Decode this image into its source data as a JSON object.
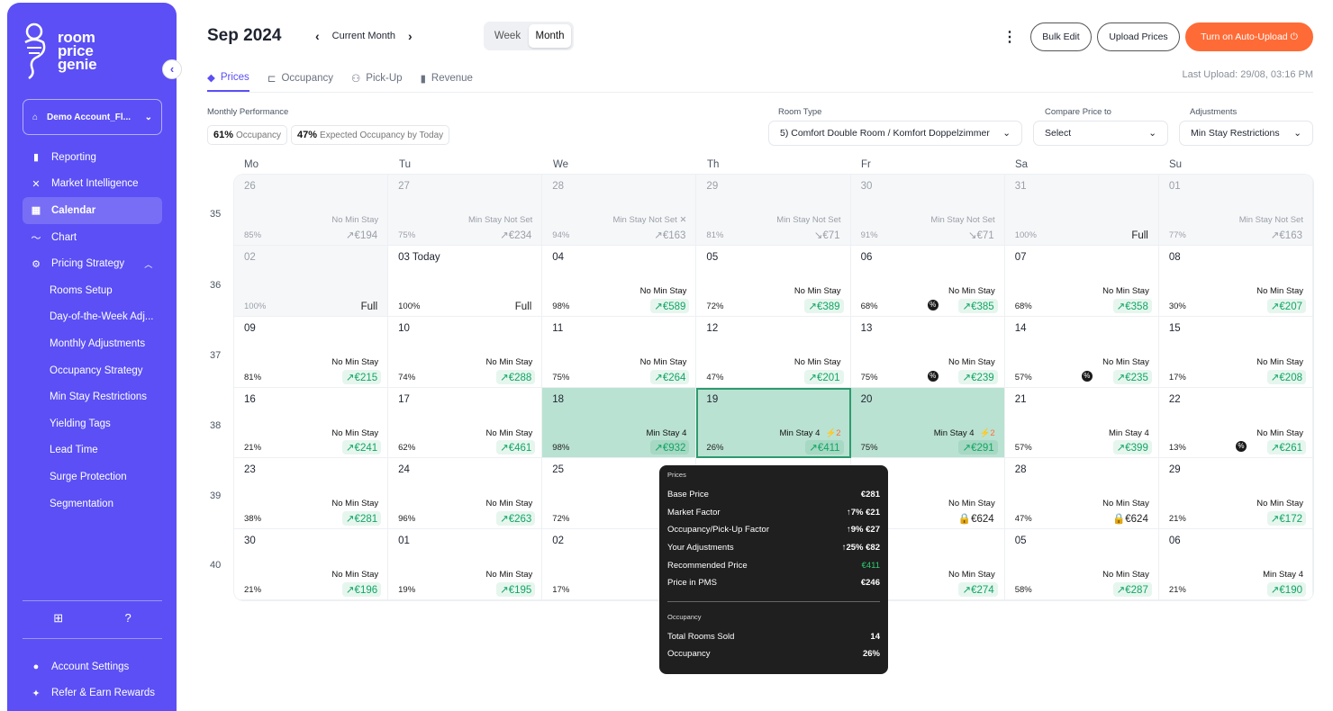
{
  "brand": {
    "line1": "room",
    "line2": "price",
    "line3": "genie"
  },
  "sidebar": {
    "account": "Demo Account_Fl...",
    "items": [
      {
        "label": "Reporting",
        "icon": "bar-chart-icon"
      },
      {
        "label": "Market Intelligence",
        "icon": "network-icon"
      },
      {
        "label": "Calendar",
        "icon": "calendar-icon"
      },
      {
        "label": "Chart",
        "icon": "line-chart-icon"
      },
      {
        "label": "Pricing Strategy",
        "icon": "gear-icon"
      }
    ],
    "sub_items": [
      "Rooms Setup",
      "Day-of-the-Week Adj...",
      "Monthly Adjustments",
      "Occupancy Strategy",
      "Min Stay Restrictions",
      "Yielding Tags",
      "Lead Time",
      "Surge Protection",
      "Segmentation"
    ],
    "bottom": [
      "Account Settings",
      "Refer & Earn Rewards"
    ]
  },
  "header": {
    "title": "Sep 2024",
    "current_month": "Current Month",
    "view_week": "Week",
    "view_month": "Month",
    "bulk_edit": "Bulk Edit",
    "upload_prices": "Upload Prices",
    "auto_upload": "Turn on Auto-Upload",
    "last_upload": "Last Upload: 29/08, 03:16 PM"
  },
  "tabs": [
    "Prices",
    "Occupancy",
    "Pick-Up",
    "Revenue"
  ],
  "filters": {
    "monthly_performance": "Monthly Performance",
    "occ_value": "61%",
    "occ_label": "Occupancy",
    "exp_value": "47%",
    "exp_label": "Expected Occupancy by Today",
    "room_type_label": "Room Type",
    "room_type": "5) Comfort Double Room / Komfort Doppelzimmer",
    "compare_label": "Compare Price to",
    "compare": "Select",
    "adjust_label": "Adjustments",
    "adjust": "Min Stay Restrictions"
  },
  "weekdays": [
    "Mo",
    "Tu",
    "We",
    "Th",
    "Fr",
    "Sa",
    "Su"
  ],
  "weeks": [
    "35",
    "36",
    "37",
    "38",
    "39",
    "40"
  ],
  "calendar": [
    [
      {
        "d": "26",
        "ms": "No Min Stay",
        "occ": "85%",
        "p": "↗€194",
        "st": "past"
      },
      {
        "d": "27",
        "ms": "Min Stay Not Set",
        "occ": "75%",
        "p": "↗€234",
        "st": "past"
      },
      {
        "d": "28",
        "ms": "Min Stay Not Set ✕",
        "occ": "94%",
        "p": "↗€163",
        "st": "past"
      },
      {
        "d": "29",
        "ms": "Min Stay Not Set",
        "occ": "81%",
        "p": "↘€71",
        "st": "past"
      },
      {
        "d": "30",
        "ms": "Min Stay Not Set",
        "occ": "91%",
        "p": "↘€71",
        "st": "past"
      },
      {
        "d": "31",
        "ms": "",
        "occ": "100%",
        "p": "Full",
        "st": "past"
      },
      {
        "d": "01",
        "ms": "Min Stay Not Set",
        "occ": "77%",
        "p": "↗€163",
        "st": "past"
      }
    ],
    [
      {
        "d": "02",
        "ms": "",
        "occ": "100%",
        "p": "Full",
        "st": "past"
      },
      {
        "d": "03 Today",
        "ms": "",
        "occ": "100%",
        "p": "Full",
        "st": "plain"
      },
      {
        "d": "04",
        "ms": "No Min Stay",
        "occ": "98%",
        "p": "↗€589",
        "st": ""
      },
      {
        "d": "05",
        "ms": "No Min Stay",
        "occ": "72%",
        "p": "↗€389",
        "st": ""
      },
      {
        "d": "06",
        "ms": "No Min Stay",
        "occ": "68%",
        "p": "↗€385",
        "st": "badge"
      },
      {
        "d": "07",
        "ms": "No Min Stay",
        "occ": "68%",
        "p": "↗€358",
        "st": ""
      },
      {
        "d": "08",
        "ms": "No Min Stay",
        "occ": "30%",
        "p": "↗€207",
        "st": ""
      }
    ],
    [
      {
        "d": "09",
        "ms": "No Min Stay",
        "occ": "81%",
        "p": "↗€215",
        "st": ""
      },
      {
        "d": "10",
        "ms": "No Min Stay",
        "occ": "74%",
        "p": "↗€288",
        "st": ""
      },
      {
        "d": "11",
        "ms": "No Min Stay",
        "occ": "75%",
        "p": "↗€264",
        "st": ""
      },
      {
        "d": "12",
        "ms": "No Min Stay",
        "occ": "47%",
        "p": "↗€201",
        "st": ""
      },
      {
        "d": "13",
        "ms": "No Min Stay",
        "occ": "75%",
        "p": "↗€239",
        "st": "badge"
      },
      {
        "d": "14",
        "ms": "No Min Stay",
        "occ": "57%",
        "p": "↗€235",
        "st": "badge"
      },
      {
        "d": "15",
        "ms": "No Min Stay",
        "occ": "17%",
        "p": "↗€208",
        "st": ""
      }
    ],
    [
      {
        "d": "16",
        "ms": "No Min Stay",
        "occ": "21%",
        "p": "↗€241",
        "st": ""
      },
      {
        "d": "17",
        "ms": "No Min Stay",
        "occ": "62%",
        "p": "↗€461",
        "st": ""
      },
      {
        "d": "18",
        "ms": "Min Stay 4",
        "occ": "98%",
        "p": "↗€932",
        "st": "hl"
      },
      {
        "d": "19",
        "ms": "Min Stay 4",
        "flag": "⚡2",
        "occ": "26%",
        "p": "↗€411",
        "st": "sel"
      },
      {
        "d": "20",
        "ms": "Min Stay 4",
        "flag": "⚡2",
        "occ": "75%",
        "p": "↗€291",
        "st": "hl"
      },
      {
        "d": "21",
        "ms": "Min Stay 4",
        "occ": "57%",
        "p": "↗€399",
        "st": ""
      },
      {
        "d": "22",
        "ms": "No Min Stay",
        "occ": "13%",
        "p": "↗€261",
        "st": "badge"
      }
    ],
    [
      {
        "d": "23",
        "ms": "No Min Stay",
        "occ": "38%",
        "p": "↗€281",
        "st": ""
      },
      {
        "d": "24",
        "ms": "No Min Stay",
        "occ": "96%",
        "p": "↗€263",
        "st": ""
      },
      {
        "d": "25",
        "ms": "No Mi",
        "occ": "72%",
        "p": "↗",
        "st": ""
      },
      {
        "d": "",
        "ms": "",
        "occ": "",
        "p": "",
        "st": ""
      },
      {
        "d": "",
        "ms": "No Min Stay",
        "occ": "",
        "p": "🔒€624",
        "st": "lock"
      },
      {
        "d": "28",
        "ms": "No Min Stay",
        "occ": "47%",
        "p": "🔒€624",
        "st": "lock"
      },
      {
        "d": "29",
        "ms": "No Min Stay",
        "occ": "21%",
        "p": "↗€172",
        "st": ""
      }
    ],
    [
      {
        "d": "30",
        "ms": "No Min Stay",
        "occ": "21%",
        "p": "↗€196",
        "st": ""
      },
      {
        "d": "01",
        "ms": "No Min Stay",
        "occ": "19%",
        "p": "↗€195",
        "st": ""
      },
      {
        "d": "02",
        "ms": "No Mi",
        "occ": "17%",
        "p": "↗",
        "st": ""
      },
      {
        "d": "",
        "ms": "",
        "occ": "",
        "p": "",
        "st": ""
      },
      {
        "d": "",
        "ms": "No Min Stay",
        "occ": "",
        "p": "↗€274",
        "st": ""
      },
      {
        "d": "05",
        "ms": "No Min Stay",
        "occ": "58%",
        "p": "↗€287",
        "st": ""
      },
      {
        "d": "06",
        "ms": "Min Stay 4",
        "occ": "21%",
        "p": "↗€190",
        "st": ""
      }
    ]
  ],
  "tooltip": {
    "prices_header": "Prices",
    "rows": [
      {
        "label": "Base Price",
        "value": "€281"
      },
      {
        "label": "Market Factor",
        "value": "↑7% €21"
      },
      {
        "label": "Occupancy/Pick-Up Factor",
        "value": "↑9% €27"
      },
      {
        "label": "Your Adjustments",
        "value": "↑25% €82"
      },
      {
        "label": "Recommended Price",
        "value": "€411",
        "green": true
      },
      {
        "label": "Price in PMS",
        "value": "€246"
      }
    ],
    "occ_header": "Occupancy",
    "occ_rows": [
      {
        "label": "Total Rooms Sold",
        "value": "14"
      },
      {
        "label": "Occupancy",
        "value": "26%"
      }
    ]
  }
}
